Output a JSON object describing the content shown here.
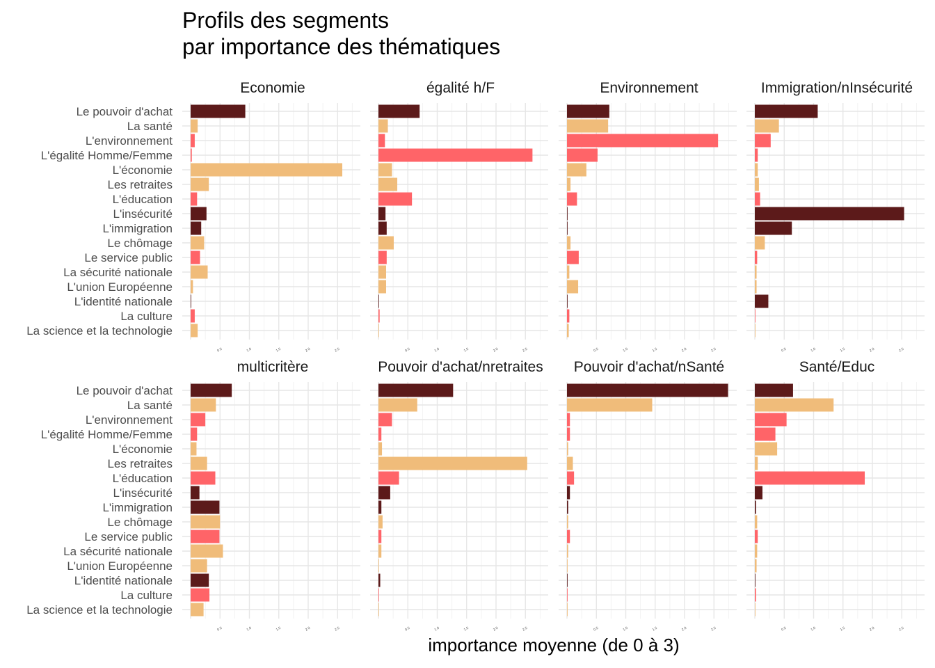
{
  "chart_data": {
    "type": "bar",
    "orientation": "horizontal",
    "title_lines": [
      "Profils des segments",
      "par importance des thématiques"
    ],
    "xlabel": "importance moyenne (de 0 à 3)",
    "ylabel": "",
    "xlim": [
      0,
      2.85
    ],
    "x_ticks": [
      "0.5",
      "1.0",
      "1.5",
      "2.0",
      "2.5"
    ],
    "grid": true,
    "categories": [
      "Le pouvoir d'achat",
      "La santé",
      "L'environnement",
      "L'égalité Homme/Femme",
      "L'économie",
      "Les retraites",
      "L'éducation",
      "L'insécurité",
      "L'immigration",
      "Le chômage",
      "Le service public",
      "La sécurité nationale",
      "L'union Européenne",
      "L'identité nationale",
      "La culture",
      "La science et la technologie"
    ],
    "colors": [
      "#5c1a1a",
      "#f0bc7a",
      "#ff6468",
      "#ff6468",
      "#f0bc7a",
      "#f0bc7a",
      "#ff6468",
      "#5c1a1a",
      "#5c1a1a",
      "#f0bc7a",
      "#ff6468",
      "#f0bc7a",
      "#f0bc7a",
      "#5c1a1a",
      "#ff6468",
      "#f0bc7a"
    ],
    "panels": [
      {
        "name": "Economie",
        "values": [
          0.93,
          0.12,
          0.07,
          0.02,
          2.58,
          0.31,
          0.11,
          0.27,
          0.18,
          0.23,
          0.16,
          0.29,
          0.04,
          0.01,
          0.07,
          0.12
        ]
      },
      {
        "name": "égalité h/F",
        "values": [
          0.7,
          0.16,
          0.11,
          2.62,
          0.23,
          0.32,
          0.57,
          0.12,
          0.14,
          0.26,
          0.14,
          0.13,
          0.13,
          0.01,
          0.02,
          0.01
        ]
      },
      {
        "name": "Environnement",
        "values": [
          0.72,
          0.7,
          2.57,
          0.52,
          0.33,
          0.06,
          0.17,
          0.01,
          0.01,
          0.06,
          0.2,
          0.04,
          0.19,
          0.01,
          0.04,
          0.03
        ]
      },
      {
        "name": "Immigration/nInsécurité",
        "values": [
          1.07,
          0.41,
          0.27,
          0.05,
          0.05,
          0.07,
          0.09,
          2.54,
          0.63,
          0.17,
          0.04,
          0.03,
          0.03,
          0.23,
          0.01,
          0.01
        ]
      },
      {
        "name": "multicritère",
        "values": [
          0.7,
          0.43,
          0.25,
          0.11,
          0.1,
          0.28,
          0.42,
          0.15,
          0.49,
          0.5,
          0.49,
          0.55,
          0.28,
          0.31,
          0.32,
          0.22
        ]
      },
      {
        "name": "Pouvoir d'achat/nretraites",
        "values": [
          1.27,
          0.66,
          0.23,
          0.05,
          0.06,
          2.53,
          0.35,
          0.2,
          0.05,
          0.07,
          0.05,
          0.05,
          0.01,
          0.03,
          0.01,
          0.01
        ]
      },
      {
        "name": "Pouvoir d'achat/nSanté",
        "values": [
          2.74,
          1.45,
          0.05,
          0.05,
          0.02,
          0.1,
          0.12,
          0.05,
          0.02,
          0.02,
          0.05,
          0.02,
          0.01,
          0.01,
          0.01,
          0.01
        ]
      },
      {
        "name": "Santé/Educ",
        "values": [
          0.65,
          1.34,
          0.54,
          0.35,
          0.38,
          0.05,
          1.87,
          0.13,
          0.02,
          0.04,
          0.05,
          0.04,
          0.03,
          0.01,
          0.02,
          0.01
        ]
      }
    ]
  }
}
